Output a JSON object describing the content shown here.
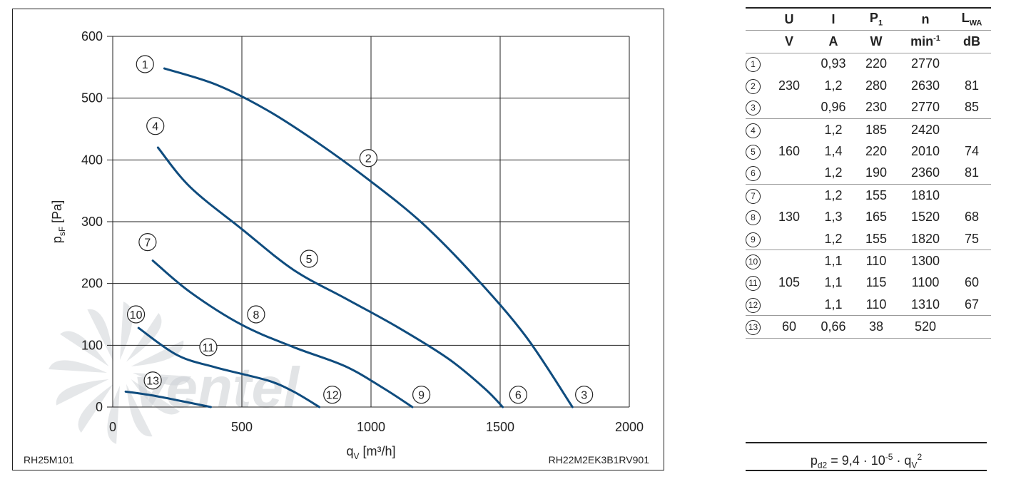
{
  "chart_data": {
    "type": "line",
    "xlabel": "q",
    "xlabel_sub": "V",
    "xlabel_unit": "[m³/h]",
    "ylabel": "p",
    "ylabel_sub": "sF",
    "ylabel_unit": "[Pa]",
    "xlim": [
      0,
      2000
    ],
    "ylim": [
      0,
      600
    ],
    "x_ticks": [
      "0",
      "500",
      "1000",
      "1500",
      "2000"
    ],
    "y_ticks": [
      "0",
      "100",
      "200",
      "300",
      "400",
      "500",
      "600"
    ],
    "grid": true,
    "model_left": "RH25M101",
    "model_right": "RH22M2EK3B1RV901",
    "watermark": "ventel",
    "series": [
      {
        "name": "1-2-3",
        "points": [
          [
            200,
            548
          ],
          [
            400,
            522
          ],
          [
            600,
            480
          ],
          [
            800,
            426
          ],
          [
            1000,
            365
          ],
          [
            1200,
            297
          ],
          [
            1400,
            212
          ],
          [
            1600,
            114
          ],
          [
            1780,
            0
          ]
        ]
      },
      {
        "name": "4-5-6",
        "points": [
          [
            175,
            420
          ],
          [
            300,
            356
          ],
          [
            500,
            288
          ],
          [
            700,
            222
          ],
          [
            900,
            176
          ],
          [
            1100,
            130
          ],
          [
            1300,
            78
          ],
          [
            1440,
            30
          ],
          [
            1510,
            0
          ]
        ]
      },
      {
        "name": "7-8-9",
        "points": [
          [
            155,
            237
          ],
          [
            300,
            186
          ],
          [
            500,
            133
          ],
          [
            700,
            97
          ],
          [
            900,
            66
          ],
          [
            1050,
            30
          ],
          [
            1160,
            0
          ]
        ]
      },
      {
        "name": "10-11-12",
        "points": [
          [
            100,
            128
          ],
          [
            250,
            84
          ],
          [
            400,
            64
          ],
          [
            600,
            43
          ],
          [
            700,
            25
          ],
          [
            800,
            0
          ]
        ]
      },
      {
        "name": "13",
        "points": [
          [
            50,
            25
          ],
          [
            150,
            19
          ],
          [
            250,
            11
          ],
          [
            380,
            0
          ]
        ]
      }
    ],
    "curve_labels": [
      {
        "id": "1",
        "x": 125,
        "y": 555
      },
      {
        "id": "2",
        "x": 990,
        "y": 403
      },
      {
        "id": "3",
        "x": 1825,
        "y": 20
      },
      {
        "id": "4",
        "x": 165,
        "y": 455
      },
      {
        "id": "5",
        "x": 760,
        "y": 240
      },
      {
        "id": "6",
        "x": 1570,
        "y": 20
      },
      {
        "id": "7",
        "x": 135,
        "y": 267
      },
      {
        "id": "8",
        "x": 555,
        "y": 150
      },
      {
        "id": "9",
        "x": 1195,
        "y": 20
      },
      {
        "id": "10",
        "x": 90,
        "y": 150
      },
      {
        "id": "11",
        "x": 370,
        "y": 97
      },
      {
        "id": "12",
        "x": 850,
        "y": 20
      },
      {
        "id": "13",
        "x": 155,
        "y": 43
      }
    ]
  },
  "table": {
    "headers_top": [
      "U",
      "I",
      "P",
      "n",
      "L"
    ],
    "headers_top_sub": [
      "",
      "",
      "1",
      "",
      "WA"
    ],
    "headers_unit": [
      "V",
      "A",
      "W",
      "min",
      "dB"
    ],
    "headers_unit_sup": [
      "",
      "",
      "",
      "-1",
      ""
    ],
    "rows": [
      {
        "id": "1",
        "u": "",
        "i": "0,93",
        "p": "220",
        "n": "2770",
        "l": ""
      },
      {
        "id": "2",
        "u": "230",
        "i": "1,2",
        "p": "280",
        "n": "2630",
        "l": "81"
      },
      {
        "id": "3",
        "u": "",
        "i": "0,96",
        "p": "230",
        "n": "2770",
        "l": "85"
      },
      {
        "id": "4",
        "u": "",
        "i": "1,2",
        "p": "185",
        "n": "2420",
        "l": ""
      },
      {
        "id": "5",
        "u": "160",
        "i": "1,4",
        "p": "220",
        "n": "2010",
        "l": "74"
      },
      {
        "id": "6",
        "u": "",
        "i": "1,2",
        "p": "190",
        "n": "2360",
        "l": "81"
      },
      {
        "id": "7",
        "u": "",
        "i": "1,2",
        "p": "155",
        "n": "1810",
        "l": ""
      },
      {
        "id": "8",
        "u": "130",
        "i": "1,3",
        "p": "165",
        "n": "1520",
        "l": "68"
      },
      {
        "id": "9",
        "u": "",
        "i": "1,2",
        "p": "155",
        "n": "1820",
        "l": "75"
      },
      {
        "id": "10",
        "u": "",
        "i": "1,1",
        "p": "110",
        "n": "1300",
        "l": ""
      },
      {
        "id": "11",
        "u": "105",
        "i": "1,1",
        "p": "115",
        "n": "1100",
        "l": "60"
      },
      {
        "id": "12",
        "u": "",
        "i": "1,1",
        "p": "110",
        "n": "1310",
        "l": "67"
      },
      {
        "id": "13",
        "u": "60",
        "i": "0,66",
        "p": "38",
        "n": "520",
        "l": ""
      }
    ]
  },
  "formula": {
    "lhs": "p",
    "lhs_sub": "d2",
    "eq": " = 9,4 · 10",
    "exp": "-5",
    "mid": " · q",
    "q_sub": "V",
    "q_sup": "2"
  },
  "colors": {
    "curve": "#0f4c7e",
    "grid": "#222222",
    "watermark": "#cfd3d7",
    "watermark_accent": "#b9d4ea"
  }
}
